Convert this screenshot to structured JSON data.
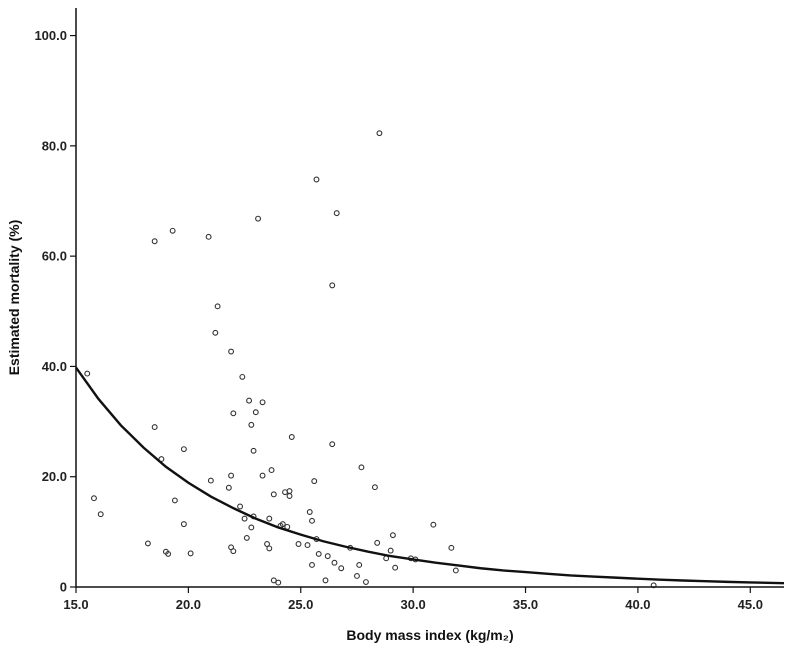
{
  "chart_data": {
    "type": "scatter",
    "title": "",
    "xlabel": "Body mass index (kg/m₂)",
    "ylabel": "Estimated mortality (%)",
    "xlim": [
      15,
      46.5
    ],
    "ylim": [
      0,
      105
    ],
    "x_ticks": [
      "15.0",
      "20.0",
      "25.0",
      "30.0",
      "35.0",
      "40.0",
      "45.0"
    ],
    "y_ticks": [
      "0",
      "20.0",
      "40.0",
      "60.0",
      "80.0",
      "100.0"
    ],
    "grid": false,
    "legend": "none",
    "colors": {
      "points": "#333333",
      "curve": "#111111",
      "axis": "#111111"
    },
    "points": [
      [
        15.5,
        38.7
      ],
      [
        15.8,
        16.1
      ],
      [
        16.1,
        13.2
      ],
      [
        18.2,
        7.9
      ],
      [
        18.5,
        62.7
      ],
      [
        18.5,
        29.0
      ],
      [
        18.8,
        23.2
      ],
      [
        19.0,
        6.4
      ],
      [
        19.1,
        6.0
      ],
      [
        19.3,
        64.6
      ],
      [
        19.4,
        15.7
      ],
      [
        19.8,
        25.0
      ],
      [
        19.8,
        11.4
      ],
      [
        20.1,
        6.1
      ],
      [
        20.9,
        63.5
      ],
      [
        21.0,
        19.3
      ],
      [
        21.2,
        46.1
      ],
      [
        21.3,
        50.9
      ],
      [
        21.9,
        42.7
      ],
      [
        21.8,
        18.0
      ],
      [
        21.9,
        20.2
      ],
      [
        22.0,
        31.5
      ],
      [
        21.9,
        7.2
      ],
      [
        22.0,
        6.5
      ],
      [
        22.3,
        14.6
      ],
      [
        22.4,
        38.1
      ],
      [
        22.5,
        12.4
      ],
      [
        22.6,
        8.9
      ],
      [
        22.7,
        33.8
      ],
      [
        22.8,
        29.4
      ],
      [
        22.8,
        10.8
      ],
      [
        22.9,
        24.7
      ],
      [
        22.9,
        12.8
      ],
      [
        23.0,
        31.7
      ],
      [
        23.1,
        66.8
      ],
      [
        23.3,
        33.5
      ],
      [
        23.3,
        20.2
      ],
      [
        23.5,
        7.8
      ],
      [
        23.6,
        7.0
      ],
      [
        23.6,
        12.4
      ],
      [
        23.7,
        21.2
      ],
      [
        23.8,
        16.8
      ],
      [
        23.8,
        1.2
      ],
      [
        24.0,
        0.8
      ],
      [
        24.1,
        11.1
      ],
      [
        24.2,
        11.4
      ],
      [
        24.3,
        17.2
      ],
      [
        24.4,
        10.9
      ],
      [
        24.5,
        16.5
      ],
      [
        24.5,
        17.4
      ],
      [
        24.6,
        27.2
      ],
      [
        24.9,
        7.8
      ],
      [
        25.3,
        7.6
      ],
      [
        25.4,
        13.6
      ],
      [
        25.5,
        4.0
      ],
      [
        25.5,
        12.0
      ],
      [
        25.6,
        19.2
      ],
      [
        25.7,
        73.9
      ],
      [
        25.8,
        6.0
      ],
      [
        25.7,
        8.7
      ],
      [
        26.1,
        1.2
      ],
      [
        26.2,
        5.6
      ],
      [
        26.4,
        54.7
      ],
      [
        26.4,
        25.9
      ],
      [
        26.5,
        4.4
      ],
      [
        26.6,
        67.8
      ],
      [
        26.8,
        3.4
      ],
      [
        27.2,
        7.1
      ],
      [
        27.5,
        2.0
      ],
      [
        27.6,
        4.0
      ],
      [
        27.7,
        21.7
      ],
      [
        27.9,
        0.9
      ],
      [
        28.3,
        18.1
      ],
      [
        28.4,
        8.0
      ],
      [
        28.5,
        82.3
      ],
      [
        28.8,
        5.2
      ],
      [
        29.0,
        6.6
      ],
      [
        29.1,
        9.4
      ],
      [
        29.2,
        3.5
      ],
      [
        29.9,
        5.2
      ],
      [
        30.1,
        5.0
      ],
      [
        30.9,
        11.3
      ],
      [
        31.7,
        7.1
      ],
      [
        31.9,
        3.0
      ],
      [
        40.7,
        0.3
      ]
    ],
    "curve": {
      "x": [
        15,
        16,
        17,
        18,
        19,
        20,
        21,
        22,
        23,
        24,
        25,
        26,
        27,
        28,
        29,
        30,
        31,
        32,
        33,
        34,
        35,
        36,
        37,
        38,
        39,
        40,
        41,
        42,
        43,
        44,
        45,
        46.5
      ],
      "y": [
        39.8,
        34.1,
        29.3,
        25.3,
        21.8,
        18.9,
        16.4,
        14.3,
        12.4,
        10.8,
        9.5,
        8.3,
        7.3,
        6.4,
        5.6,
        5.0,
        4.4,
        3.9,
        3.4,
        3.0,
        2.7,
        2.4,
        2.1,
        1.9,
        1.7,
        1.5,
        1.33,
        1.18,
        1.05,
        0.93,
        0.83,
        0.7
      ]
    }
  }
}
